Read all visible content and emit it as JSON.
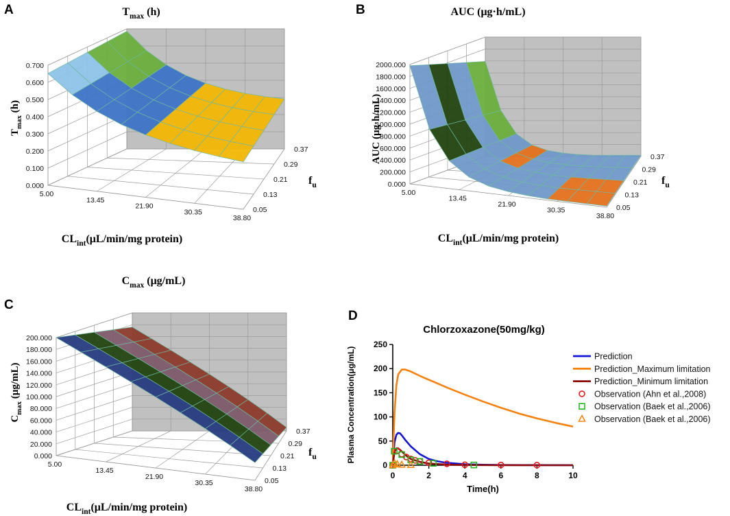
{
  "colors": {
    "wall": "#c0c0c0",
    "grid": "#9a9a9a",
    "edge": "#6fb9a0",
    "green": "#6cae3c",
    "blue": "#3d74c6",
    "gold": "#f2b705",
    "orange": "#e4701e",
    "lightblue": "#8ec3e8",
    "steel": "#6f98c8",
    "darkgreen": "#21420f",
    "darkred": "#8c3a2c",
    "navy": "#263a80",
    "pred": "#1515d6",
    "predmax": "#f5820f",
    "predmin": "#8b0a0a",
    "obs_ahn": "#e41a1c",
    "obs_baek_sq": "#27b427",
    "obs_baek_tri": "#f08a10"
  },
  "chart_data": [
    {
      "panel": "A",
      "type": "surface3d",
      "title": "T",
      "title_sub": "max",
      "title_unit": " (h)",
      "ylabel": "T",
      "ylabel_sub": "max",
      "ylabel_unit": " (h)",
      "xlabel": "CL",
      "xlabel_sub": "int",
      "xlabel_unit": "(μL/min/mg protein)",
      "zlabel": "f",
      "zlabel_sub": "u",
      "x_ticks": [
        "5.00",
        "13.45",
        "21.90",
        "30.35",
        "38.80"
      ],
      "depth_ticks": [
        "0.05",
        "0.13",
        "0.21",
        "0.29",
        "0.37"
      ],
      "y_ticks": [
        "0.000",
        "0.100",
        "0.200",
        "0.300",
        "0.400",
        "0.500",
        "0.600",
        "0.700"
      ],
      "ylim": [
        0,
        0.7
      ]
    },
    {
      "panel": "B",
      "type": "surface3d",
      "title": "AUC  (μg·h/mL)",
      "ylabel": "AUC (μg·h/mL)",
      "xlabel": "CL",
      "xlabel_sub": "int",
      "xlabel_unit": "(μL/min/mg protein)",
      "zlabel": "f",
      "zlabel_sub": "u",
      "x_ticks": [
        "5.00",
        "13.45",
        "21.90",
        "30.35",
        "38.80"
      ],
      "depth_ticks": [
        "0.05",
        "0.13",
        "0.21",
        "0.29",
        "0.37"
      ],
      "y_ticks": [
        "0.000",
        "200.000",
        "400.000",
        "600.000",
        "800.000",
        "1000.000",
        "1200.000",
        "1400.000",
        "1600.000",
        "1800.000",
        "2000.000"
      ],
      "ylim": [
        0,
        2000
      ]
    },
    {
      "panel": "C",
      "type": "surface3d",
      "title": "C",
      "title_sub": "max",
      "title_unit": " (μg/mL)",
      "ylabel": "C",
      "ylabel_sub": "max",
      "ylabel_unit": " (μg/mL)",
      "xlabel": "CL",
      "xlabel_sub": "int",
      "xlabel_unit": "(μL/min/mg protein)",
      "zlabel": "f",
      "zlabel_sub": "u",
      "x_ticks": [
        "5.00",
        "13.45",
        "21.90",
        "30.35",
        "38.80"
      ],
      "depth_ticks": [
        "0.05",
        "0.13",
        "0.21",
        "0.29",
        "0.37"
      ],
      "y_ticks": [
        "0.000",
        "20.000",
        "40.000",
        "60.000",
        "80.000",
        "100.000",
        "120.000",
        "140.000",
        "160.000",
        "180.000",
        "200.000"
      ],
      "ylim": [
        0,
        200
      ]
    },
    {
      "panel": "D",
      "type": "line",
      "title": "Chlorzoxazone(50mg/kg)",
      "xlabel": "Time(h)",
      "ylabel": "Plasma Concentration(μg/mL)",
      "xlim": [
        0,
        10
      ],
      "ylim": [
        0,
        250
      ],
      "x_ticks": [
        0,
        2,
        4,
        6,
        8,
        10
      ],
      "y_ticks": [
        0,
        50,
        100,
        150,
        200,
        250
      ],
      "series": [
        {
          "name": "Prediction",
          "style": "line",
          "color": "#1515d6",
          "x": [
            0,
            0.05,
            0.1,
            0.2,
            0.3,
            0.4,
            0.5,
            0.7,
            1,
            1.5,
            2,
            2.5,
            3,
            4,
            5,
            6,
            8,
            10
          ],
          "y": [
            0,
            28,
            48,
            63,
            67,
            66,
            62,
            52,
            39,
            23,
            13,
            8,
            5,
            2,
            1,
            0.5,
            0.2,
            0.1
          ]
        },
        {
          "name": "Prediction_Maximum limitation",
          "style": "line",
          "color": "#f5820f",
          "x": [
            0,
            0.05,
            0.1,
            0.2,
            0.3,
            0.5,
            0.7,
            1,
            1.5,
            2,
            3,
            4,
            5,
            6,
            7,
            8,
            9,
            10
          ],
          "y": [
            0,
            60,
            110,
            165,
            188,
            198,
            198,
            194,
            185,
            177,
            161,
            146,
            132,
            119,
            107,
            97,
            88,
            80
          ]
        },
        {
          "name": "Prediction_Minimum limitation",
          "style": "line",
          "color": "#8b0a0a",
          "x": [
            0,
            0.05,
            0.1,
            0.2,
            0.3,
            0.4,
            0.6,
            0.8,
            1,
            1.5,
            2,
            3,
            4,
            6,
            8,
            10
          ],
          "y": [
            0,
            15,
            27,
            35,
            35,
            32,
            25,
            18,
            13,
            7,
            3.5,
            1.2,
            0.5,
            0.1,
            0,
            0
          ]
        },
        {
          "name": "Observation (Ahn et al.,2008)",
          "style": "marker",
          "marker": "circle",
          "color": "#e41a1c",
          "x": [
            0,
            0.25,
            0.5,
            0.75,
            1,
            1.25,
            1.5,
            2,
            3,
            4,
            6,
            8
          ],
          "y": [
            0,
            30,
            23,
            17,
            13,
            10,
            8,
            5,
            3,
            1,
            0.5,
            0.2
          ]
        },
        {
          "name": "Observation (Baek et al.,2006)",
          "style": "marker",
          "marker": "square",
          "color": "#27b427",
          "x": [
            0,
            0.083,
            0.5,
            1,
            1.5,
            2.25,
            4.5
          ],
          "y": [
            0,
            29,
            22,
            11,
            8,
            4,
            0.5
          ]
        },
        {
          "name": "Observation (Baek et al.,2006)",
          "style": "marker",
          "marker": "triangle",
          "color": "#f08a10",
          "x": [
            0,
            0.1,
            0.25,
            0.5,
            1
          ],
          "y": [
            0,
            4,
            2,
            1,
            0.5
          ]
        }
      ]
    }
  ],
  "panels": [
    "A",
    "B",
    "C",
    "D"
  ]
}
